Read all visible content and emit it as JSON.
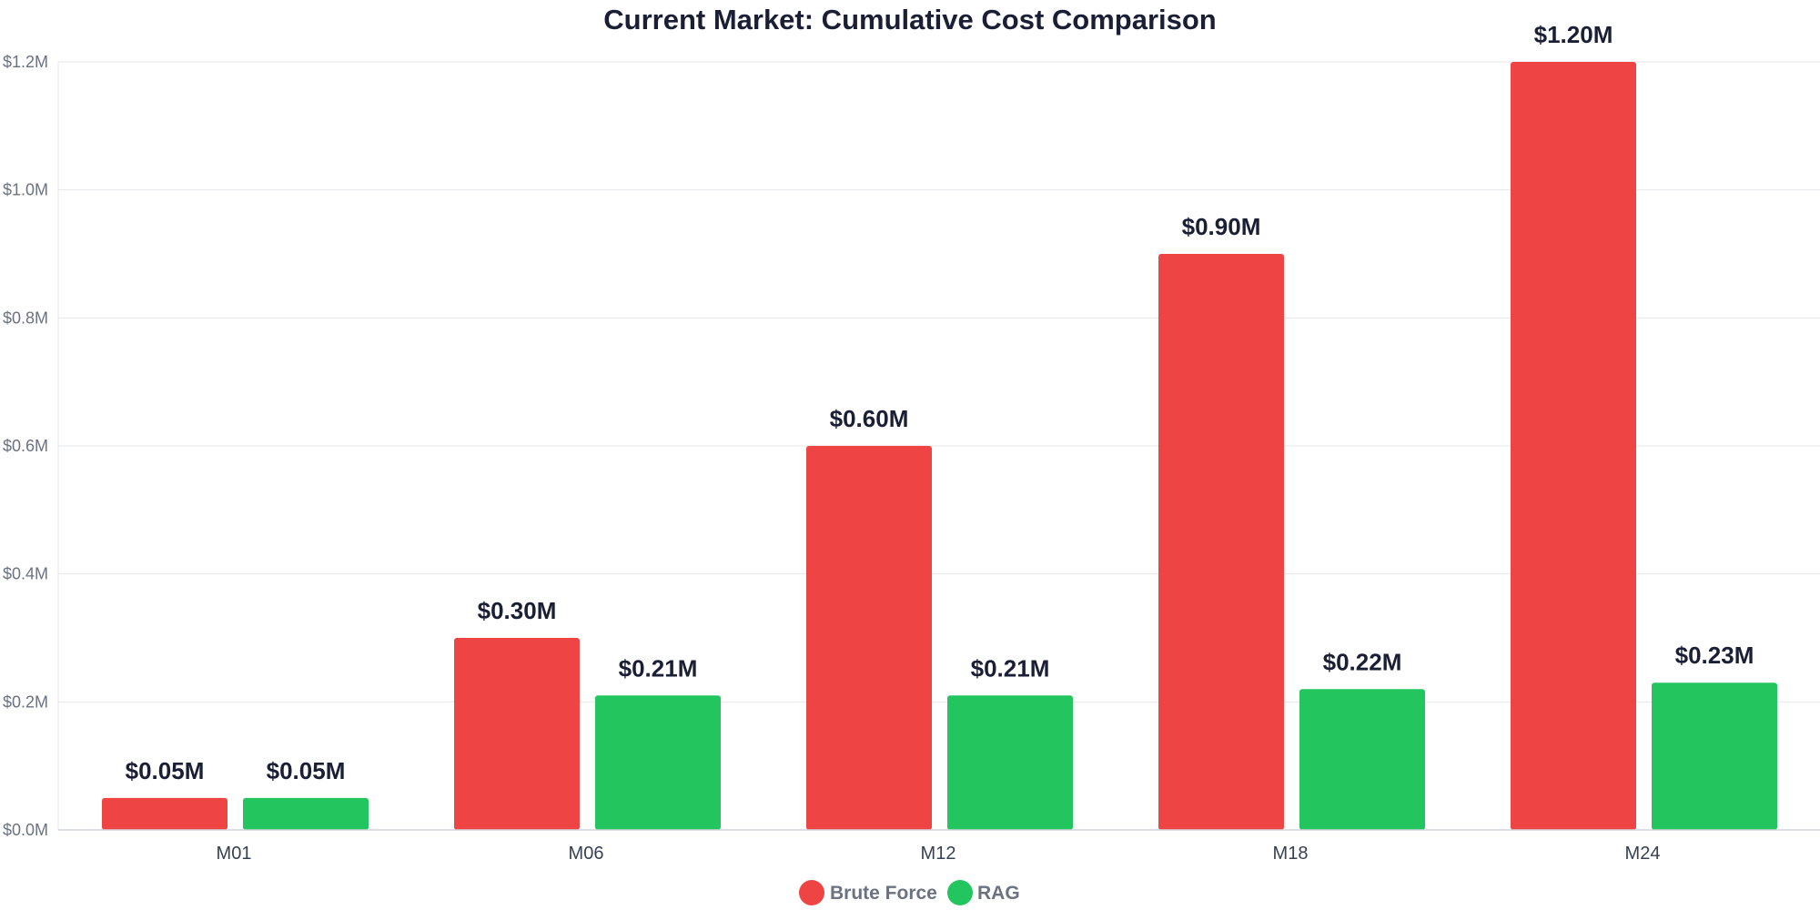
{
  "chart_data": {
    "type": "bar",
    "title": "Current Market: Cumulative Cost Comparison",
    "xlabel": "",
    "ylabel": "",
    "categories": [
      "M01",
      "M06",
      "M12",
      "M18",
      "M24"
    ],
    "series": [
      {
        "name": "Brute Force",
        "color": "#ef4444",
        "values": [
          0.05,
          0.3,
          0.6,
          0.9,
          1.2
        ],
        "labels": [
          "$0.05M",
          "$0.30M",
          "$0.60M",
          "$0.90M",
          "$1.20M"
        ]
      },
      {
        "name": "RAG",
        "color": "#22c55e",
        "values": [
          0.05,
          0.21,
          0.21,
          0.22,
          0.23
        ],
        "labels": [
          "$0.05M",
          "$0.21M",
          "$0.21M",
          "$0.22M",
          "$0.23M"
        ]
      }
    ],
    "ylim": [
      0,
      1.2
    ],
    "yticks": [
      0,
      0.2,
      0.4,
      0.6,
      0.8,
      1.0,
      1.2
    ],
    "ytick_labels": [
      "$0.0M",
      "$0.2M",
      "$0.4M",
      "$0.6M",
      "$0.8M",
      "$1.0M",
      "$1.2M"
    ],
    "grid": true,
    "legend_position": "bottom-center"
  }
}
